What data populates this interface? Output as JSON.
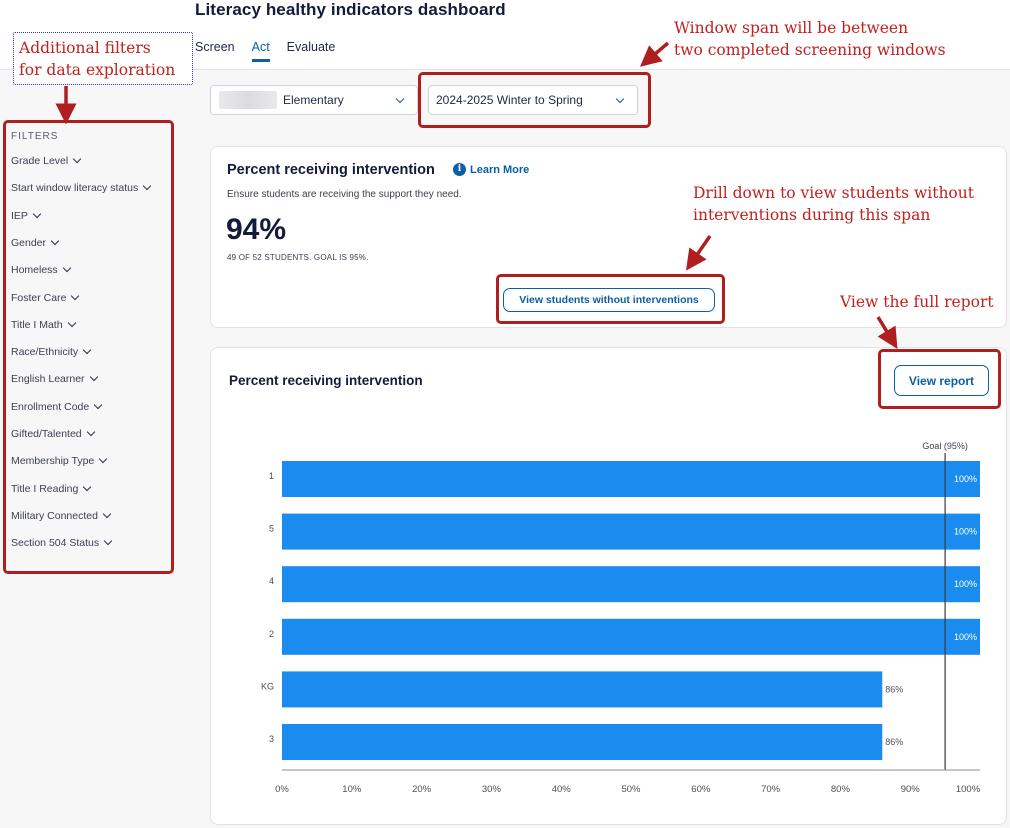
{
  "header": {
    "title": "Literacy healthy indicators dashboard",
    "tabs": [
      {
        "label": "Screen"
      },
      {
        "label": "Act"
      },
      {
        "label": "Evaluate"
      }
    ]
  },
  "sidebar": {
    "title": "FILTERS",
    "items": [
      {
        "label": "Grade Level"
      },
      {
        "label": "Start window literacy status"
      },
      {
        "label": "IEP"
      },
      {
        "label": "Gender"
      },
      {
        "label": "Homeless"
      },
      {
        "label": "Foster Care"
      },
      {
        "label": "Title I Math"
      },
      {
        "label": "Race/Ethnicity"
      },
      {
        "label": "English Learner"
      },
      {
        "label": "Enrollment Code"
      },
      {
        "label": "Gifted/Talented"
      },
      {
        "label": "Membership Type"
      },
      {
        "label": "Title I Reading"
      },
      {
        "label": "Military Connected"
      },
      {
        "label": "Section 504 Status"
      }
    ]
  },
  "selectors": {
    "school": "Elementary",
    "window": "2024-2025 Winter to Spring"
  },
  "summary_card": {
    "title": "Percent receiving intervention",
    "learn_more": "Learn More",
    "subtitle": "Ensure students are receiving the support they need.",
    "percent": "94%",
    "detail": "49 OF 52 STUDENTS. GOAL IS 95%.",
    "button": "View students without interventions"
  },
  "report_card": {
    "title": "Percent receiving intervention",
    "button": "View report"
  },
  "annotations": {
    "filters": [
      "Additional filters",
      "for data exploration"
    ],
    "window": [
      "Window span will be between",
      "two completed screening windows"
    ],
    "drill": [
      "Drill down to view students without",
      "interventions during this span"
    ],
    "report": "View the full report"
  },
  "colors": {
    "bar": "#1a8cf0",
    "accent": "#0b5fa5",
    "annotation": "#c0211f"
  },
  "chart_data": {
    "type": "bar",
    "orientation": "horizontal",
    "categories": [
      "1",
      "5",
      "4",
      "2",
      "KG",
      "3"
    ],
    "values": [
      100,
      100,
      100,
      100,
      86,
      86
    ],
    "data_labels": [
      "100%",
      "100%",
      "100%",
      "100%",
      "86%",
      "86%"
    ],
    "goal": 95,
    "goal_label": "Goal (95%)",
    "xlim": [
      0,
      100
    ],
    "x_ticks": [
      "0%",
      "10%",
      "20%",
      "30%",
      "40%",
      "50%",
      "60%",
      "70%",
      "80%",
      "90%",
      "100%"
    ],
    "grid": false
  }
}
